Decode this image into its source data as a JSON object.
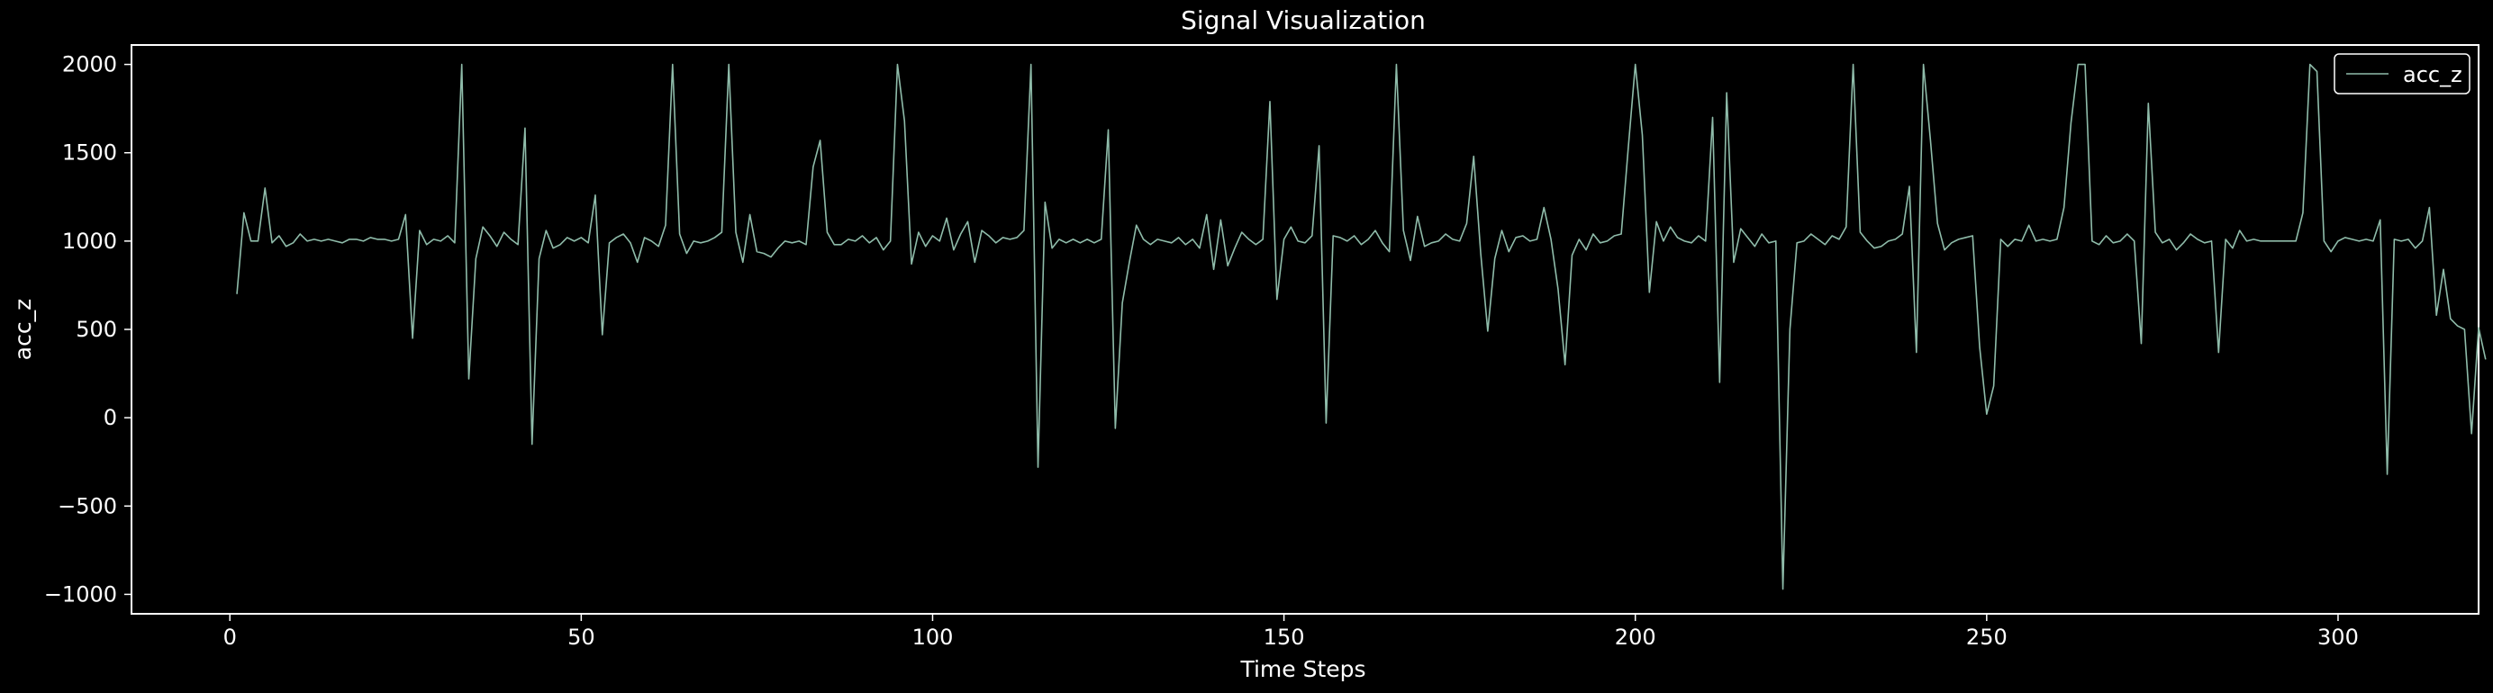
{
  "colors": {
    "background": "#000000",
    "axes": "#ffffff",
    "line": "#8fbcaa"
  },
  "chart_data": {
    "type": "line",
    "title": "Signal Visualization",
    "xlabel": "Time Steps",
    "ylabel": "acc_z",
    "xlim": [
      -14,
      320
    ],
    "ylim": [
      -1110,
      2110
    ],
    "xticks": [
      0,
      50,
      100,
      150,
      200,
      250,
      300
    ],
    "yticks": [
      -1000,
      -500,
      0,
      500,
      1000,
      1500,
      2000
    ],
    "grid": false,
    "legend_position": "top-right",
    "series": [
      {
        "name": "acc_z",
        "x_start": 1,
        "x_step": 1,
        "values": [
          700,
          1160,
          1000,
          1000,
          1300,
          990,
          1030,
          970,
          990,
          1040,
          1000,
          1010,
          1000,
          1010,
          1000,
          990,
          1010,
          1010,
          1000,
          1020,
          1010,
          1010,
          1000,
          1010,
          1150,
          450,
          1060,
          980,
          1010,
          1000,
          1030,
          990,
          2000,
          220,
          900,
          1080,
          1030,
          970,
          1050,
          1010,
          980,
          1640,
          -150,
          900,
          1060,
          960,
          980,
          1020,
          1000,
          1020,
          990,
          1260,
          470,
          990,
          1020,
          1040,
          990,
          880,
          1020,
          1000,
          970,
          1090,
          2000,
          1040,
          930,
          1000,
          990,
          1000,
          1020,
          1050,
          2000,
          1050,
          880,
          1150,
          940,
          930,
          910,
          960,
          1000,
          990,
          1000,
          980,
          1420,
          1570,
          1050,
          980,
          980,
          1010,
          1000,
          1030,
          990,
          1020,
          950,
          1000,
          2000,
          1680,
          870,
          1050,
          970,
          1030,
          1000,
          1130,
          950,
          1040,
          1110,
          880,
          1060,
          1030,
          990,
          1020,
          1010,
          1020,
          1060,
          2000,
          -280,
          1220,
          960,
          1010,
          990,
          1010,
          990,
          1010,
          990,
          1010,
          1630,
          -60,
          650,
          880,
          1090,
          1010,
          980,
          1010,
          1000,
          990,
          1020,
          980,
          1010,
          960,
          1150,
          840,
          1120,
          860,
          960,
          1050,
          1010,
          980,
          1010,
          1790,
          670,
          1010,
          1080,
          1000,
          990,
          1030,
          1540,
          -30,
          1030,
          1020,
          1000,
          1030,
          980,
          1010,
          1060,
          990,
          940,
          2000,
          1060,
          890,
          1140,
          970,
          990,
          1000,
          1040,
          1010,
          1000,
          1100,
          1480,
          930,
          490,
          900,
          1060,
          940,
          1020,
          1030,
          1000,
          1010,
          1190,
          1010,
          730,
          300,
          920,
          1010,
          950,
          1040,
          990,
          1000,
          1030,
          1040,
          1530,
          2000,
          1600,
          710,
          1110,
          1000,
          1080,
          1020,
          1000,
          990,
          1030,
          1000,
          1700,
          200,
          1840,
          880,
          1070,
          1020,
          970,
          1040,
          990,
          1000,
          -970,
          500,
          990,
          1000,
          1040,
          1010,
          980,
          1030,
          1010,
          1080,
          2000,
          1050,
          1000,
          960,
          970,
          1000,
          1010,
          1040,
          1310,
          370,
          2000,
          1570,
          1100,
          950,
          990,
          1010,
          1020,
          1030,
          400,
          20,
          180,
          1010,
          970,
          1010,
          1000,
          1090,
          1000,
          1010,
          1000,
          1010,
          1190,
          1670,
          2000,
          2000,
          1000,
          980,
          1030,
          990,
          1000,
          1040,
          1000,
          420,
          1780,
          1050,
          990,
          1010,
          950,
          990,
          1040,
          1010,
          990,
          1000,
          370,
          1010,
          960,
          1060,
          1000,
          1010,
          1000,
          1000,
          1000,
          1000,
          1000,
          1000,
          1160,
          2000,
          1960,
          1000,
          940,
          1000,
          1020,
          1010,
          1000,
          1010,
          1000,
          1120,
          -320,
          1010,
          1000,
          1010,
          960,
          1000,
          1190,
          580,
          840,
          560,
          520,
          500,
          -90,
          510,
          330
        ]
      }
    ]
  }
}
